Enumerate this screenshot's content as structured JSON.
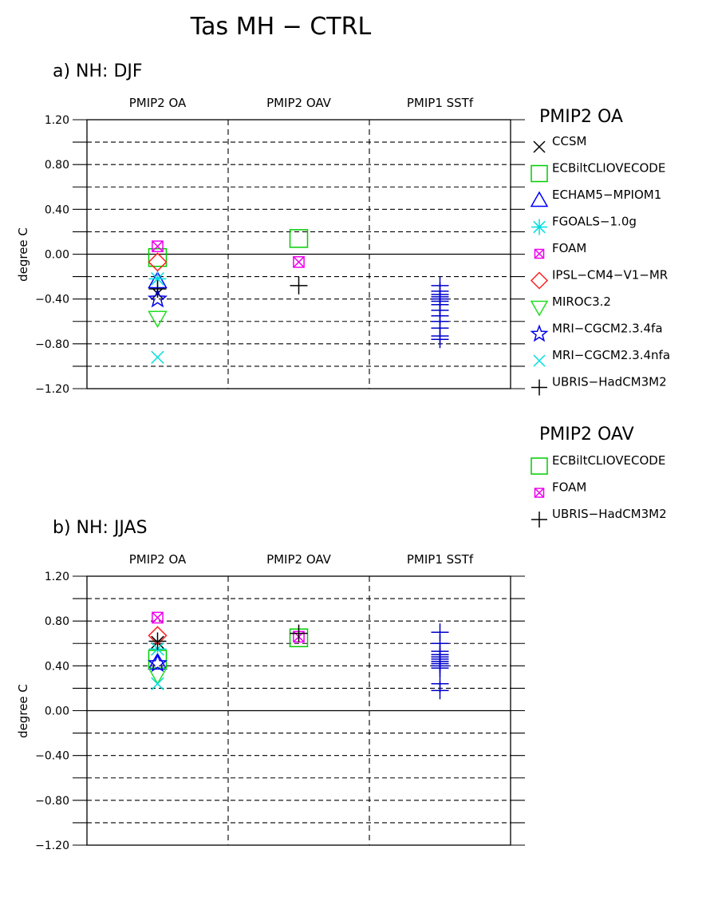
{
  "title": "Tas MH  −  CTRL",
  "colors": {
    "CCSM": "#000000",
    "ECBiltCLIOVECODE": "#00cc00",
    "ECHAM5-MPIOM1": "#0000ff",
    "FGOALS-1.0g": "#00dddd",
    "FOAM": "#ee00ee",
    "IPSL-CM4-V1-MR": "#ff2222",
    "MIROC3.2": "#22dd22",
    "MRI-CGCM2.3.4fa": "#0000ee",
    "MRI-CGCM2.3.4nfa": "#00dddd",
    "UBRIS-HadCM3M2": "#000000",
    "PMIP1": "#0000cc"
  },
  "legend": {
    "groups": [
      {
        "title": "PMIP2 OA",
        "items": [
          {
            "label": "CCSM",
            "marker": "x-cross",
            "color": "#000000"
          },
          {
            "label": "ECBiltCLIOVECODE",
            "marker": "square",
            "color": "#00cc00"
          },
          {
            "label": "ECHAM5−MPIOM1",
            "marker": "triangle-up",
            "color": "#0000ff"
          },
          {
            "label": "FGOALS−1.0g",
            "marker": "asterisk",
            "color": "#00dddd"
          },
          {
            "label": "FOAM",
            "marker": "boxed-x",
            "color": "#ee00ee"
          },
          {
            "label": "IPSL−CM4−V1−MR",
            "marker": "diamond",
            "color": "#ff2222"
          },
          {
            "label": "MIROC3.2",
            "marker": "triangle-down",
            "color": "#22dd22"
          },
          {
            "label": "MRI−CGCM2.3.4fa",
            "marker": "star",
            "color": "#0000ee"
          },
          {
            "label": "MRI−CGCM2.3.4nfa",
            "marker": "x-cross",
            "color": "#00dddd"
          },
          {
            "label": "UBRIS−HadCM3M2",
            "marker": "plus",
            "color": "#000000"
          }
        ]
      },
      {
        "title": "PMIP2 OAV",
        "items": [
          {
            "label": "ECBiltCLIOVECODE",
            "marker": "square",
            "color": "#00cc00"
          },
          {
            "label": "FOAM",
            "marker": "boxed-x",
            "color": "#ee00ee"
          },
          {
            "label": "UBRIS−HadCM3M2",
            "marker": "plus",
            "color": "#000000"
          }
        ]
      }
    ]
  },
  "chart_data": [
    {
      "type": "scatter",
      "title": "a)  NH: DJF",
      "ylabel": "degree C",
      "ylim": [
        -1.2,
        1.2
      ],
      "yticks": [
        "1.20",
        "0.80",
        "0.40",
        "0.00",
        "−0.40",
        "−0.80",
        "−1.20"
      ],
      "categories": [
        "PMIP2 OA",
        "PMIP2 OAV",
        "PMIP1 SSTf"
      ],
      "grid": "dashed horizontal every 0.2, dashed vertical between columns",
      "series": [
        {
          "category": "PMIP2 OA",
          "model": "CCSM",
          "marker": "x-cross",
          "color": "#000000",
          "value": -0.35
        },
        {
          "category": "PMIP2 OA",
          "model": "ECBiltCLIOVECODE",
          "marker": "square",
          "color": "#00cc00",
          "value": -0.03
        },
        {
          "category": "PMIP2 OA",
          "model": "ECHAM5-MPIOM1",
          "marker": "triangle-up",
          "color": "#0000ff",
          "value": -0.24
        },
        {
          "category": "PMIP2 OA",
          "model": "FGOALS-1.0g",
          "marker": "asterisk",
          "color": "#00dddd",
          "value": -0.22
        },
        {
          "category": "PMIP2 OA",
          "model": "FOAM",
          "marker": "boxed-x",
          "color": "#ee00ee",
          "value": 0.07
        },
        {
          "category": "PMIP2 OA",
          "model": "IPSL-CM4-V1-MR",
          "marker": "diamond",
          "color": "#ff2222",
          "value": -0.07
        },
        {
          "category": "PMIP2 OA",
          "model": "MIROC3.2",
          "marker": "triangle-down",
          "color": "#22dd22",
          "value": -0.57
        },
        {
          "category": "PMIP2 OA",
          "model": "MRI-CGCM2.3.4fa",
          "marker": "star",
          "color": "#0000ee",
          "value": -0.4
        },
        {
          "category": "PMIP2 OA",
          "model": "MRI-CGCM2.3.4nfa",
          "marker": "x-cross",
          "color": "#00dddd",
          "value": -0.92
        },
        {
          "category": "PMIP2 OA",
          "model": "UBRIS-HadCM3M2",
          "marker": "plus",
          "color": "#000000",
          "value": -0.31
        },
        {
          "category": "PMIP2 OAV",
          "model": "ECBiltCLIOVECODE",
          "marker": "square",
          "color": "#00cc00",
          "value": 0.14
        },
        {
          "category": "PMIP2 OAV",
          "model": "FOAM",
          "marker": "boxed-x",
          "color": "#ee00ee",
          "value": -0.07
        },
        {
          "category": "PMIP2 OAV",
          "model": "UBRIS-HadCM3M2",
          "marker": "plus",
          "color": "#000000",
          "value": -0.28
        },
        {
          "category": "PMIP1 SSTf",
          "model": "PMIP1",
          "marker": "plus",
          "color": "#0000cc",
          "values": [
            -0.28,
            -0.33,
            -0.36,
            -0.38,
            -0.4,
            -0.42,
            -0.45,
            -0.5,
            -0.55,
            -0.6,
            -0.66,
            -0.73,
            -0.76
          ]
        }
      ]
    },
    {
      "type": "scatter",
      "title": "b)  NH: JJAS",
      "ylabel": "degree C",
      "ylim": [
        -1.2,
        1.2
      ],
      "yticks": [
        "1.20",
        "0.80",
        "0.40",
        "0.00",
        "−0.40",
        "−0.80",
        "−1.20"
      ],
      "categories": [
        "PMIP2 OA",
        "PMIP2 OAV",
        "PMIP1 SSTf"
      ],
      "grid": "dashed horizontal every 0.2, dashed vertical between columns",
      "series": [
        {
          "category": "PMIP2 OA",
          "model": "CCSM",
          "marker": "x-cross",
          "color": "#000000",
          "value": 0.61
        },
        {
          "category": "PMIP2 OA",
          "model": "ECBiltCLIOVECODE",
          "marker": "square",
          "color": "#00cc00",
          "value": 0.46
        },
        {
          "category": "PMIP2 OA",
          "model": "ECHAM5-MPIOM1",
          "marker": "triangle-up",
          "color": "#0000ff",
          "value": 0.43
        },
        {
          "category": "PMIP2 OA",
          "model": "FGOALS-1.0g",
          "marker": "asterisk",
          "color": "#00dddd",
          "value": 0.55
        },
        {
          "category": "PMIP2 OA",
          "model": "FOAM",
          "marker": "boxed-x",
          "color": "#ee00ee",
          "value": 0.83
        },
        {
          "category": "PMIP2 OA",
          "model": "IPSL-CM4-V1-MR",
          "marker": "diamond",
          "color": "#ff2222",
          "value": 0.67
        },
        {
          "category": "PMIP2 OA",
          "model": "MIROC3.2",
          "marker": "triangle-down",
          "color": "#22dd22",
          "value": 0.32
        },
        {
          "category": "PMIP2 OA",
          "model": "MRI-CGCM2.3.4fa",
          "marker": "star",
          "color": "#0000ee",
          "value": 0.42
        },
        {
          "category": "PMIP2 OA",
          "model": "MRI-CGCM2.3.4nfa",
          "marker": "x-cross",
          "color": "#00dddd",
          "value": 0.24
        },
        {
          "category": "PMIP2 OA",
          "model": "UBRIS-HadCM3M2",
          "marker": "plus",
          "color": "#000000",
          "value": 0.62
        },
        {
          "category": "PMIP2 OAV",
          "model": "ECBiltCLIOVECODE",
          "marker": "square",
          "color": "#00cc00",
          "value": 0.65
        },
        {
          "category": "PMIP2 OAV",
          "model": "FOAM",
          "marker": "boxed-x",
          "color": "#ee00ee",
          "value": 0.66
        },
        {
          "category": "PMIP2 OAV",
          "model": "UBRIS-HadCM3M2",
          "marker": "plus",
          "color": "#000000",
          "value": 0.69
        },
        {
          "category": "PMIP1 SSTf",
          "model": "PMIP1",
          "marker": "plus",
          "color": "#0000cc",
          "values": [
            0.7,
            0.6,
            0.53,
            0.5,
            0.48,
            0.46,
            0.44,
            0.42,
            0.4,
            0.38,
            0.24,
            0.18
          ]
        }
      ]
    }
  ]
}
